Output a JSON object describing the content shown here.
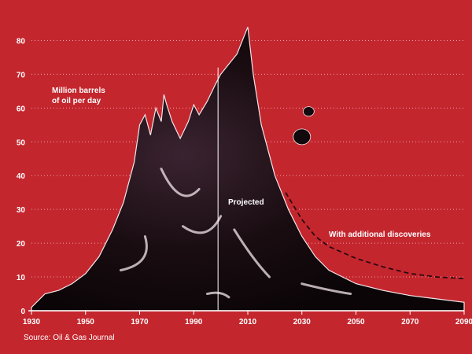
{
  "chart_data": {
    "type": "area",
    "title": "",
    "xlabel": "",
    "ylabel": "Million barrels of oil per day",
    "ylabel_lines": [
      "Million barrels",
      "of oil per day"
    ],
    "xlim": [
      1930,
      2090
    ],
    "ylim": [
      0,
      85
    ],
    "y_ticks": [
      0,
      10,
      20,
      30,
      40,
      50,
      60,
      70,
      80
    ],
    "x_ticks": [
      1930,
      1950,
      1970,
      1990,
      2010,
      2030,
      2050,
      2070,
      2090
    ],
    "grid": true,
    "projection_start": 1999,
    "series": [
      {
        "x": [
          1930,
          1935,
          1940,
          1945,
          1950,
          1955,
          1960,
          1964,
          1968,
          1970,
          1972,
          1974,
          1976,
          1978,
          1979,
          1980,
          1982,
          1985,
          1988,
          1990,
          1992,
          1995,
          1998,
          2000,
          2003,
          2006,
          2008,
          2010,
          2012,
          2015,
          2020,
          2025,
          2030,
          2035,
          2040,
          2050,
          2060,
          2070,
          2080,
          2090
        ],
        "values": [
          1,
          5,
          6,
          8,
          11,
          16,
          24,
          32,
          44,
          55,
          58,
          52,
          60,
          56,
          64,
          61,
          56,
          51,
          56,
          61,
          58,
          62,
          67,
          70,
          73,
          76,
          80,
          84,
          70,
          55,
          40,
          30,
          22,
          16,
          12,
          8,
          6,
          4.5,
          3.5,
          2.5
        ]
      },
      {
        "name": "With additional discoveries",
        "style": "dashed",
        "x": [
          2024,
          2030,
          2035,
          2040,
          2050,
          2060,
          2070,
          2080,
          2090
        ],
        "values": [
          35,
          27,
          22,
          19,
          15.5,
          13,
          11,
          10,
          9.5
        ]
      }
    ],
    "annotations": [
      "Projected",
      "With additional discoveries"
    ],
    "source": "Source: Oil & Gas Journal"
  },
  "colors": {
    "background": "#c4262e",
    "oil": "#12090c",
    "grid": "#e8a3a3",
    "text": "#ffffff"
  }
}
